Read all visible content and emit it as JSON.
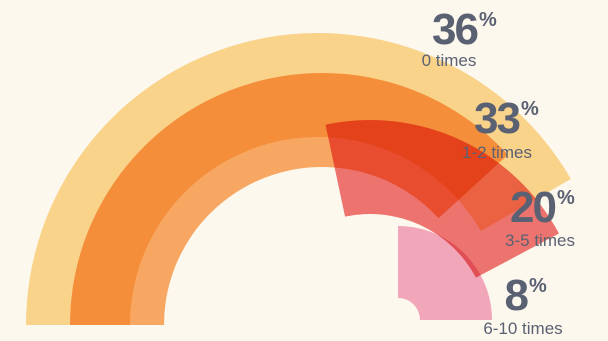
{
  "chart_data": {
    "type": "radial-bar",
    "unit": "%",
    "series": [
      {
        "category": "0 times",
        "value": 36,
        "color": "#fcd58a"
      },
      {
        "category": "1-2 times",
        "value": 33,
        "color": "#f7953f"
      },
      {
        "category": "3-5 times",
        "value": 20,
        "color": "#ea5050"
      },
      {
        "category": "6-10 times",
        "value": 8,
        "color": "#ef95b6"
      }
    ]
  }
}
